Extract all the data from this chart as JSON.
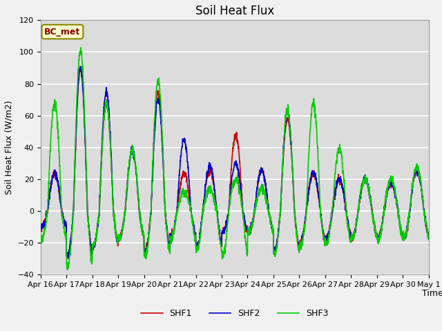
{
  "title": "Soil Heat Flux",
  "ylabel": "Soil Heat Flux (W/m2)",
  "xlabel": "Time",
  "ylim": [
    -40,
    120
  ],
  "figure_facecolor": "#f0f0f0",
  "axes_facecolor": "#dcdcdc",
  "grid_color": "#ffffff",
  "shf1_color": "#cc0000",
  "shf2_color": "#0000cc",
  "shf3_color": "#00cc00",
  "annotation_text": "BC_met",
  "annotation_bg": "#ffffcc",
  "annotation_border": "#888800",
  "legend_labels": [
    "SHF1",
    "SHF2",
    "SHF3"
  ],
  "x_tick_labels": [
    "Apr 16",
    "Apr 17",
    "Apr 18",
    "Apr 19",
    "Apr 20",
    "Apr 21",
    "Apr 22",
    "Apr 23",
    "Apr 24",
    "Apr 25",
    "Apr 26",
    "Apr 27",
    "Apr 28",
    "Apr 29",
    "Apr 30",
    "May 1"
  ],
  "yticks": [
    -40,
    -20,
    0,
    20,
    40,
    60,
    80,
    100,
    120
  ],
  "linewidth": 1.2,
  "title_fontsize": 12,
  "label_fontsize": 9,
  "tick_fontsize": 8,
  "legend_fontsize": 9,
  "annotation_fontsize": 9
}
